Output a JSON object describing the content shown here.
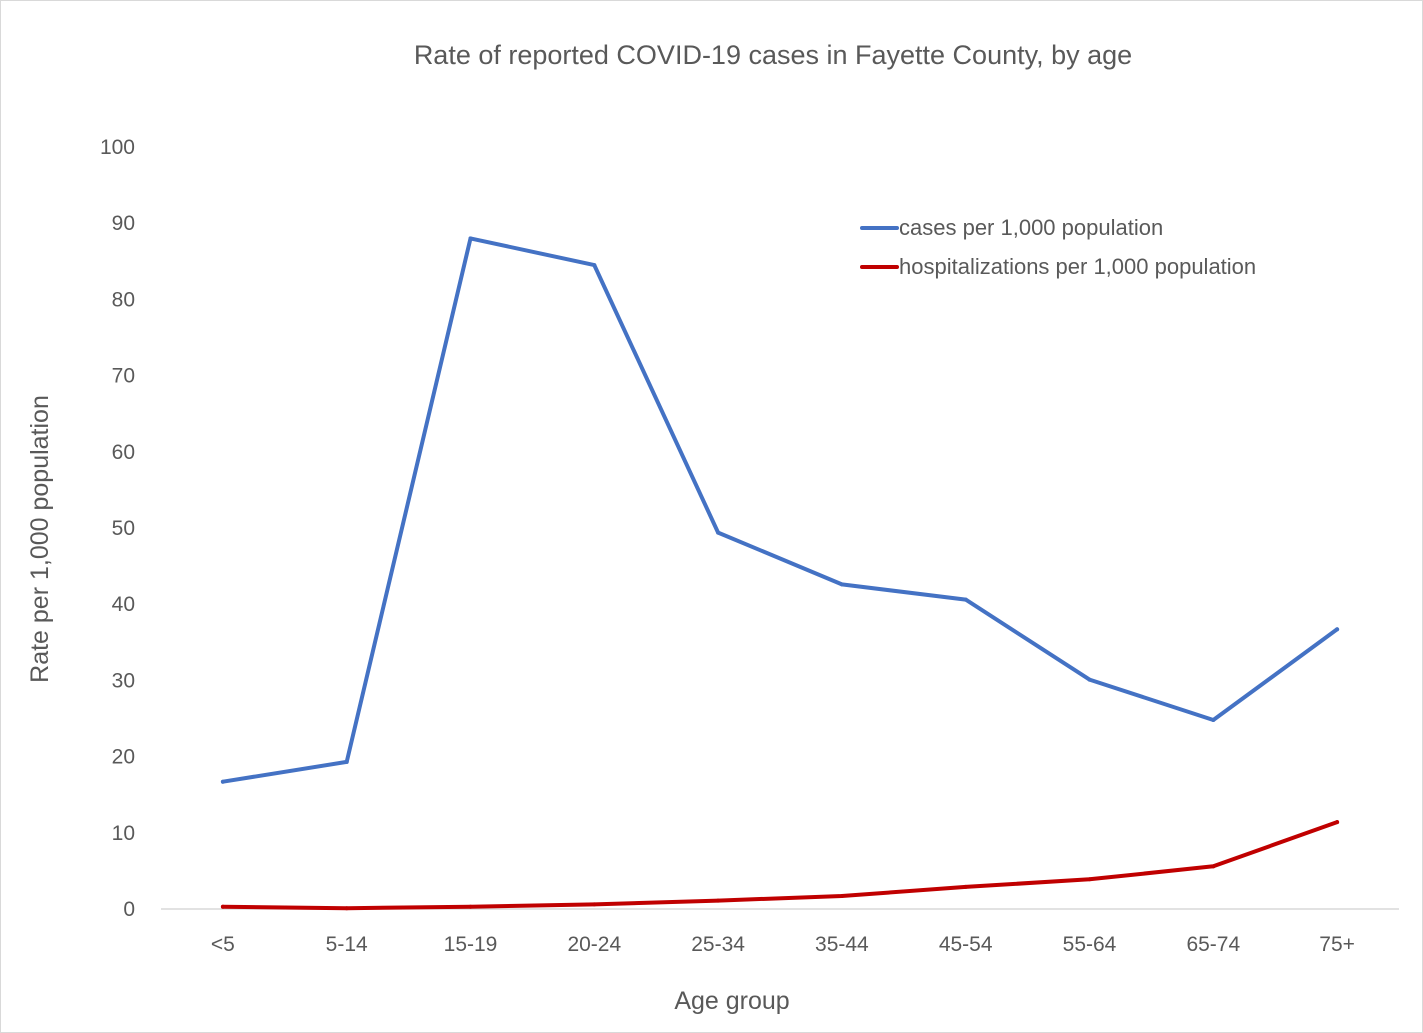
{
  "chart_data": {
    "type": "line",
    "title": "Rate of reported COVID-19 cases in Fayette County, by age",
    "xlabel": "Age group",
    "ylabel": "Rate per 1,000 population",
    "categories": [
      "<5",
      "5-14",
      "15-19",
      "20-24",
      "25-34",
      "35-44",
      "45-54",
      "55-64",
      "65-74",
      "75+"
    ],
    "ylim": [
      0,
      100
    ],
    "yticks": [
      0,
      10,
      20,
      30,
      40,
      50,
      60,
      70,
      80,
      90,
      100
    ],
    "grid": false,
    "legend_position": "top-right",
    "series": [
      {
        "name": "cases per 1,000 population",
        "color": "#4472c4",
        "values": [
          16.7,
          19.3,
          88.0,
          84.5,
          49.4,
          42.6,
          40.6,
          30.1,
          24.8,
          36.7
        ]
      },
      {
        "name": "hospitalizations per 1,000 population",
        "color": "#c00000",
        "values": [
          0.3,
          0.1,
          0.3,
          0.6,
          1.1,
          1.7,
          2.9,
          3.9,
          5.6,
          11.4
        ]
      }
    ]
  }
}
